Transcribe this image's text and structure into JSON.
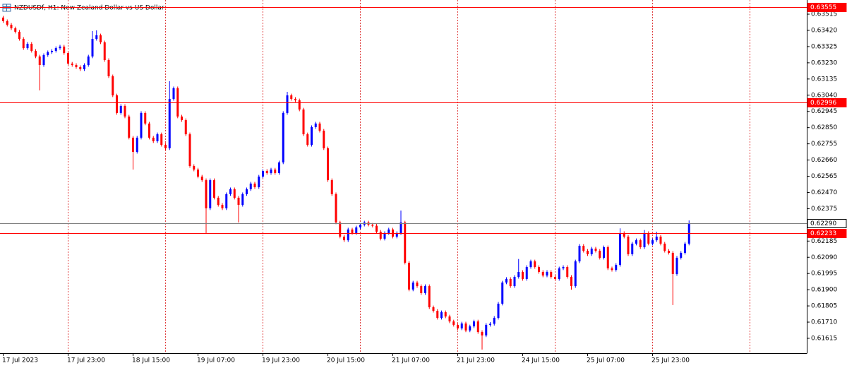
{
  "chart_data": {
    "type": "candlestick",
    "title": "NZDUSDf, H1:  New Zealand Dollar vs US Dollar",
    "categories": [
      "17 Jul 2023",
      null,
      null,
      null,
      null,
      null,
      null,
      null,
      null,
      null,
      null,
      null,
      null,
      null,
      null,
      null,
      "17 Jul 23:00",
      null,
      null,
      null,
      null,
      null,
      null,
      null,
      null,
      null,
      null,
      null,
      null,
      null,
      null,
      null,
      "18 Jul 15:00",
      null,
      null,
      null,
      null,
      null,
      null,
      null,
      null,
      null,
      null,
      null,
      null,
      null,
      null,
      null,
      "19 Jul 07:00",
      null,
      null,
      null,
      null,
      null,
      null,
      null,
      null,
      null,
      null,
      null,
      null,
      null,
      null,
      null,
      "19 Jul 23:00",
      null,
      null,
      null,
      null,
      null,
      null,
      null,
      null,
      null,
      null,
      null,
      null,
      null,
      null,
      null,
      "20 Jul 15:00",
      null,
      null,
      null,
      null,
      null,
      null,
      null,
      null,
      null,
      null,
      null,
      null,
      null,
      null,
      null,
      "21 Jul 07:00",
      null,
      null,
      null,
      null,
      null,
      null,
      null,
      null,
      null,
      null,
      null,
      null,
      null,
      null,
      null,
      "21 Jul 23:00",
      null,
      null,
      null,
      null,
      null,
      null,
      null,
      null,
      null,
      null,
      null,
      null,
      null,
      null,
      null,
      "24 Jul 15:00",
      null,
      null,
      null,
      null,
      null,
      null,
      null,
      null,
      null,
      null,
      null,
      null,
      null,
      null,
      null,
      "25 Jul 07:00",
      null,
      null,
      null,
      null,
      null,
      null,
      null,
      null,
      null,
      null,
      null,
      null,
      null,
      null,
      null,
      "25 Jul 23:00",
      null,
      null,
      null,
      null,
      null,
      null,
      null,
      null,
      null
    ],
    "open": [
      0.63495,
      0.63474,
      0.63453,
      0.63432,
      0.63412,
      0.6337,
      0.63316,
      0.63341,
      0.633,
      0.63267,
      0.63217,
      0.63275,
      0.63292,
      0.633,
      0.63316,
      0.63325,
      0.63287,
      0.63225,
      0.63217,
      0.63205,
      0.63192,
      0.63217,
      0.63267,
      0.6337,
      0.63391,
      0.6335,
      0.63246,
      0.63151,
      0.63039,
      0.62936,
      0.62977,
      0.62915,
      0.62791,
      0.62708,
      0.62791,
      0.62936,
      0.62874,
      0.62791,
      0.6277,
      0.62811,
      0.62749,
      0.62729,
      0.63018,
      0.63081,
      0.62915,
      0.62894,
      0.62811,
      0.62625,
      0.62604,
      0.62563,
      0.62542,
      0.62377,
      0.62542,
      0.62439,
      0.62397,
      0.62377,
      0.6246,
      0.62489,
      0.62439,
      0.62397,
      0.6246,
      0.62489,
      0.62522,
      0.62501,
      0.62563,
      0.62596,
      0.62584,
      0.62604,
      0.62584,
      0.62646,
      0.62936,
      0.63039,
      0.63018,
      0.6301,
      0.62956,
      0.62811,
      0.62749,
      0.62853,
      0.62874,
      0.62832,
      0.62729,
      0.62542,
      0.6246,
      0.62294,
      0.62211,
      0.6219,
      0.62253,
      0.62232,
      0.62265,
      0.62281,
      0.62294,
      0.62281,
      0.62275,
      0.6224,
      0.62199,
      0.62232,
      0.62253,
      0.62211,
      0.62232,
      0.62294,
      0.62058,
      0.61901,
      0.61942,
      0.61921,
      0.6188,
      0.61921,
      0.61797,
      0.61776,
      0.61735,
      0.61768,
      0.61743,
      0.61714,
      0.61694,
      0.61673,
      0.61702,
      0.61661,
      0.61685,
      0.61714,
      0.61652,
      0.61632,
      0.61694,
      0.617,
      0.61735,
      0.61818,
      0.61942,
      0.61963,
      0.61921,
      0.61975,
      0.62004,
      0.61963,
      0.62033,
      0.62066,
      0.62033,
      0.62004,
      0.61983,
      0.62004,
      0.61975,
      0.61963,
      0.62025,
      0.62033,
      0.61975,
      0.61921,
      0.62066,
      0.62157,
      0.62128,
      0.62108,
      0.62141,
      0.62128,
      0.62087,
      0.62149,
      0.62025,
      0.62016,
      0.62045,
      0.62232,
      0.62211,
      0.62108,
      0.6217,
      0.6219,
      0.62149,
      0.62232,
      0.6217,
      0.6219,
      0.62211,
      0.6217,
      0.62128,
      0.62116,
      0.61992,
      0.62087,
      0.62116,
      0.6217
    ],
    "high": [
      0.63505,
      0.63484,
      0.63463,
      0.63442,
      0.63422,
      0.6338,
      0.63351,
      0.63351,
      0.6331,
      0.63277,
      0.63285,
      0.63302,
      0.6331,
      0.63326,
      0.63335,
      0.63335,
      0.63297,
      0.63235,
      0.63227,
      0.63215,
      0.63227,
      0.63277,
      0.63416,
      0.6342,
      0.63401,
      0.6336,
      0.63256,
      0.63161,
      0.63049,
      0.62987,
      0.62987,
      0.62925,
      0.62801,
      0.62801,
      0.62946,
      0.62946,
      0.62884,
      0.62801,
      0.62821,
      0.62821,
      0.62759,
      0.63122,
      0.63091,
      0.63091,
      0.62925,
      0.62904,
      0.62821,
      0.62635,
      0.62614,
      0.62573,
      0.62552,
      0.62552,
      0.62552,
      0.62449,
      0.62407,
      0.6247,
      0.62499,
      0.62499,
      0.62449,
      0.6247,
      0.62499,
      0.62532,
      0.62532,
      0.62573,
      0.62606,
      0.62606,
      0.62614,
      0.62614,
      0.62656,
      0.62946,
      0.6306,
      0.63049,
      0.63028,
      0.6302,
      0.62966,
      0.62821,
      0.62863,
      0.62884,
      0.62884,
      0.62842,
      0.62739,
      0.62552,
      0.6247,
      0.62304,
      0.62221,
      0.62263,
      0.62263,
      0.62275,
      0.62291,
      0.62304,
      0.62304,
      0.62291,
      0.62285,
      0.6225,
      0.62242,
      0.62263,
      0.62263,
      0.62242,
      0.62364,
      0.62304,
      0.62068,
      0.61952,
      0.61952,
      0.61931,
      0.61931,
      0.61931,
      0.61807,
      0.61786,
      0.61778,
      0.61778,
      0.61753,
      0.61724,
      0.61704,
      0.61712,
      0.61712,
      0.61695,
      0.61724,
      0.61724,
      0.61662,
      0.61704,
      0.6171,
      0.61745,
      0.61828,
      0.61952,
      0.61973,
      0.61973,
      0.61985,
      0.6208,
      0.62014,
      0.62043,
      0.62076,
      0.62076,
      0.62043,
      0.62014,
      0.62014,
      0.62014,
      0.61985,
      0.62035,
      0.62043,
      0.62043,
      0.61985,
      0.62076,
      0.62167,
      0.62167,
      0.62138,
      0.62151,
      0.62151,
      0.62138,
      0.62159,
      0.62159,
      0.62035,
      0.62055,
      0.6226,
      0.62242,
      0.62221,
      0.6218,
      0.622,
      0.622,
      0.6225,
      0.62242,
      0.622,
      0.6224,
      0.62221,
      0.6218,
      0.62138,
      0.62126,
      0.62097,
      0.62126,
      0.6218,
      0.62306
    ],
    "low": [
      0.63464,
      0.63443,
      0.63422,
      0.63402,
      0.6336,
      0.63306,
      0.63306,
      0.6329,
      0.63257,
      0.63068,
      0.63207,
      0.63265,
      0.63282,
      0.6329,
      0.63306,
      0.63277,
      0.63215,
      0.63207,
      0.63195,
      0.63182,
      0.63182,
      0.63207,
      0.63257,
      0.6336,
      0.6334,
      0.63236,
      0.63141,
      0.63029,
      0.62926,
      0.62926,
      0.62905,
      0.62781,
      0.62604,
      0.62698,
      0.62781,
      0.62864,
      0.62781,
      0.6276,
      0.6276,
      0.62739,
      0.62719,
      0.62719,
      0.63008,
      0.62905,
      0.62884,
      0.62801,
      0.62615,
      0.62594,
      0.62553,
      0.62532,
      0.62232,
      0.62367,
      0.62429,
      0.62387,
      0.62367,
      0.62367,
      0.6245,
      0.62429,
      0.62294,
      0.62387,
      0.6245,
      0.62479,
      0.62491,
      0.62491,
      0.62553,
      0.62574,
      0.62574,
      0.62574,
      0.62574,
      0.62636,
      0.62926,
      0.63008,
      0.63,
      0.62946,
      0.62801,
      0.62739,
      0.62739,
      0.62843,
      0.62822,
      0.62719,
      0.62532,
      0.6245,
      0.62284,
      0.62201,
      0.6218,
      0.6218,
      0.62222,
      0.62222,
      0.62255,
      0.62271,
      0.62271,
      0.62265,
      0.6223,
      0.62189,
      0.62189,
      0.62222,
      0.62201,
      0.62201,
      0.62222,
      0.62048,
      0.61891,
      0.61891,
      0.61911,
      0.6187,
      0.6187,
      0.61787,
      0.61766,
      0.61725,
      0.61725,
      0.61733,
      0.61704,
      0.61684,
      0.61663,
      0.61663,
      0.61651,
      0.61651,
      0.61675,
      0.61642,
      0.61549,
      0.61622,
      0.61684,
      0.6169,
      0.61725,
      0.61808,
      0.61932,
      0.61911,
      0.61911,
      0.61965,
      0.61953,
      0.61953,
      0.62023,
      0.62023,
      0.61994,
      0.61973,
      0.61973,
      0.61965,
      0.61953,
      0.61953,
      0.62015,
      0.61965,
      0.619,
      0.61911,
      0.62056,
      0.62118,
      0.62098,
      0.62098,
      0.62118,
      0.62077,
      0.62077,
      0.62015,
      0.62006,
      0.62006,
      0.62035,
      0.62201,
      0.62098,
      0.62098,
      0.6216,
      0.62139,
      0.62139,
      0.6216,
      0.6216,
      0.6218,
      0.6216,
      0.62118,
      0.62106,
      0.6181,
      0.61982,
      0.62077,
      0.62106,
      0.6216
    ],
    "close": [
      0.63474,
      0.63453,
      0.63432,
      0.63412,
      0.6337,
      0.63316,
      0.63341,
      0.633,
      0.63267,
      0.63217,
      0.63275,
      0.63292,
      0.633,
      0.63316,
      0.63325,
      0.63287,
      0.63225,
      0.63217,
      0.63205,
      0.63192,
      0.63217,
      0.63267,
      0.6337,
      0.63391,
      0.6335,
      0.63246,
      0.63151,
      0.63039,
      0.62936,
      0.62977,
      0.62915,
      0.62791,
      0.62708,
      0.62791,
      0.62936,
      0.62874,
      0.62791,
      0.6277,
      0.62811,
      0.62749,
      0.62729,
      0.63018,
      0.63081,
      0.62915,
      0.62894,
      0.62811,
      0.62625,
      0.62604,
      0.62563,
      0.62542,
      0.62377,
      0.62542,
      0.62439,
      0.62397,
      0.62377,
      0.6246,
      0.62489,
      0.62439,
      0.62397,
      0.6246,
      0.62489,
      0.62522,
      0.62501,
      0.62563,
      0.62596,
      0.62584,
      0.62604,
      0.62584,
      0.62646,
      0.62936,
      0.63039,
      0.63018,
      0.6301,
      0.62956,
      0.62811,
      0.62749,
      0.62853,
      0.62874,
      0.62832,
      0.62729,
      0.62542,
      0.6246,
      0.62294,
      0.62211,
      0.6219,
      0.62253,
      0.62232,
      0.62265,
      0.62281,
      0.62294,
      0.62281,
      0.62275,
      0.6224,
      0.62199,
      0.62232,
      0.62253,
      0.62211,
      0.62232,
      0.62294,
      0.62058,
      0.61901,
      0.61942,
      0.61921,
      0.6188,
      0.61921,
      0.61797,
      0.61776,
      0.61735,
      0.61768,
      0.61743,
      0.61714,
      0.61694,
      0.61673,
      0.61702,
      0.61661,
      0.61685,
      0.61714,
      0.61652,
      0.61632,
      0.61694,
      0.617,
      0.61735,
      0.61818,
      0.61942,
      0.61963,
      0.61921,
      0.61975,
      0.62004,
      0.61963,
      0.62033,
      0.62066,
      0.62033,
      0.62004,
      0.61983,
      0.62004,
      0.61975,
      0.61963,
      0.62025,
      0.62033,
      0.61975,
      0.61921,
      0.62066,
      0.62157,
      0.62128,
      0.62108,
      0.62141,
      0.62128,
      0.62087,
      0.62149,
      0.62025,
      0.62016,
      0.62045,
      0.62232,
      0.62211,
      0.62108,
      0.6217,
      0.6219,
      0.62149,
      0.62232,
      0.6217,
      0.6219,
      0.62211,
      0.6217,
      0.62128,
      0.62116,
      0.61992,
      0.62087,
      0.62116,
      0.6217,
      0.6229
    ],
    "up_color": "#0000ff",
    "down_color": "#ff0000",
    "grid_color": "#e04040",
    "ylim": [
      0.61528,
      0.63598
    ],
    "yticks": [
      0.63515,
      {
        "value": 0.6342,
        "label": "0.63420"
      },
      0.63325,
      {
        "value": 0.6323,
        "label": "0.63230"
      },
      0.63135,
      {
        "value": 0.6304,
        "label": "0.63040"
      },
      0.62945,
      {
        "value": 0.6285,
        "label": "0.62850"
      },
      0.62755,
      {
        "value": 0.6266,
        "label": "0.62660"
      },
      0.62565,
      {
        "value": 0.6247,
        "label": "0.62470"
      },
      0.62375,
      0.62185,
      {
        "value": 0.6209,
        "label": "0.62090"
      },
      0.61995,
      {
        "value": 0.619,
        "label": "0.61900"
      },
      0.61805,
      {
        "value": 0.6171,
        "label": "0.61710"
      },
      0.61615
    ],
    "levels": [
      {
        "value": 0.63555,
        "color": "#ff0000"
      },
      {
        "value": 0.62996,
        "color": "#ff0000"
      },
      {
        "value": 0.6229,
        "label": "0.62290",
        "color": "#808080"
      },
      {
        "value": 0.62233,
        "color": "#ff0000"
      }
    ]
  }
}
